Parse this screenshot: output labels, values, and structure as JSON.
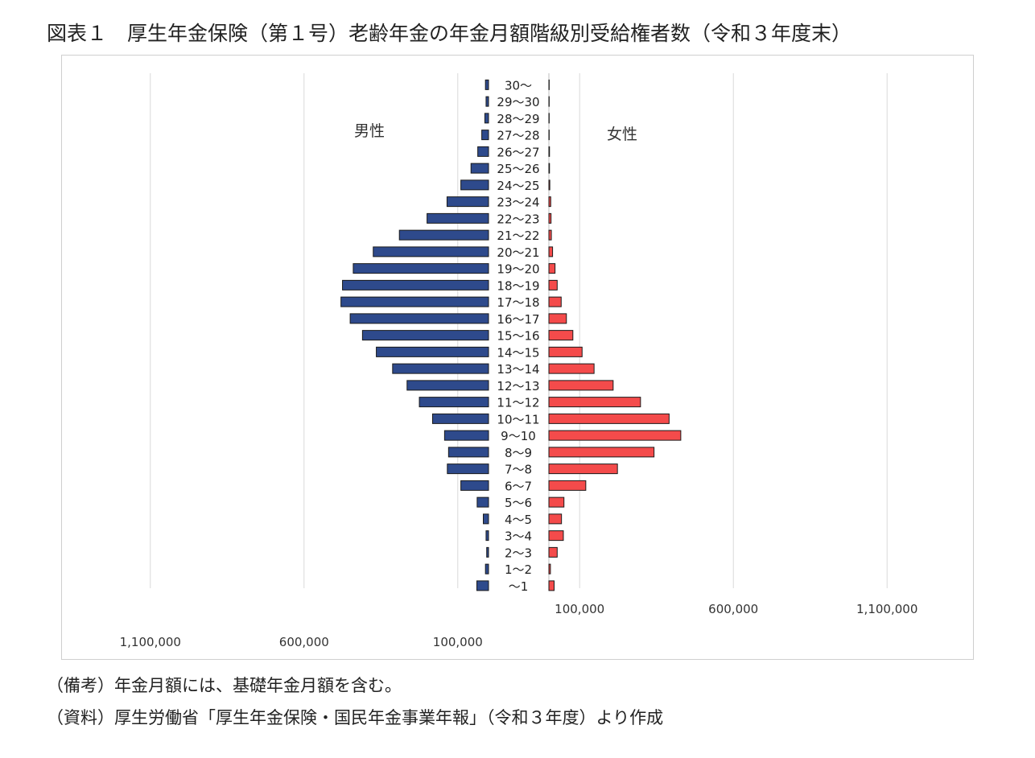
{
  "title": "図表１　厚生年金保険（第１号）老齢年金の年金月額階級別受給権者数（令和３年度末）",
  "notes": {
    "remark": "（備考）年金月額には、基礎年金月額を含む。",
    "source": "（資料）厚生労働省「厚生年金保険・国民年金事業年報」（令和３年度）より作成"
  },
  "colors": {
    "male": "#2e4a8c",
    "female": "#f44b4b",
    "outline": "#1a1a1a",
    "grid": "#d9d9d9"
  },
  "chart_data": {
    "type": "bar",
    "orientation": "horizontal",
    "layout": "population-pyramid",
    "categories": [
      "30～",
      "29～30",
      "28～29",
      "27～28",
      "26～27",
      "25～26",
      "24～25",
      "23～24",
      "22～23",
      "21～22",
      "20～21",
      "19～20",
      "18～19",
      "17～18",
      "16～17",
      "15～16",
      "14～15",
      "13～14",
      "12～13",
      "11～12",
      "10～11",
      "9～10",
      "8～9",
      "7～8",
      "6～7",
      "5～6",
      "4～5",
      "3～4",
      "2～3",
      "1～2",
      "～1"
    ],
    "series": [
      {
        "name": "男性",
        "side": "left",
        "values": [
          10000,
          8000,
          12000,
          22000,
          35000,
          57000,
          90000,
          135000,
          200000,
          290000,
          375000,
          440000,
          475000,
          480000,
          450000,
          410000,
          365000,
          312000,
          265000,
          225000,
          182000,
          143000,
          130000,
          134000,
          90000,
          37000,
          17000,
          8000,
          6000,
          10000,
          38000
        ]
      },
      {
        "name": "女性",
        "side": "right",
        "values": [
          1000,
          1000,
          1000,
          1000,
          2000,
          2000,
          3000,
          6000,
          7000,
          8000,
          12000,
          20000,
          27000,
          40000,
          57000,
          78000,
          108000,
          147000,
          209000,
          298000,
          391000,
          429000,
          342000,
          223000,
          120000,
          49000,
          41000,
          47000,
          27000,
          5000,
          17000
        ]
      }
    ],
    "xaxis_left": {
      "ticks": [
        1100000,
        600000,
        100000
      ],
      "tick_labels": [
        "1,100,000",
        "600,000",
        "100,000"
      ]
    },
    "xaxis_right": {
      "ticks": [
        100000,
        600000,
        1100000
      ],
      "tick_labels": [
        "100,000",
        "600,000",
        "1,100,000"
      ]
    },
    "grid": true,
    "legend": "inline labels"
  }
}
